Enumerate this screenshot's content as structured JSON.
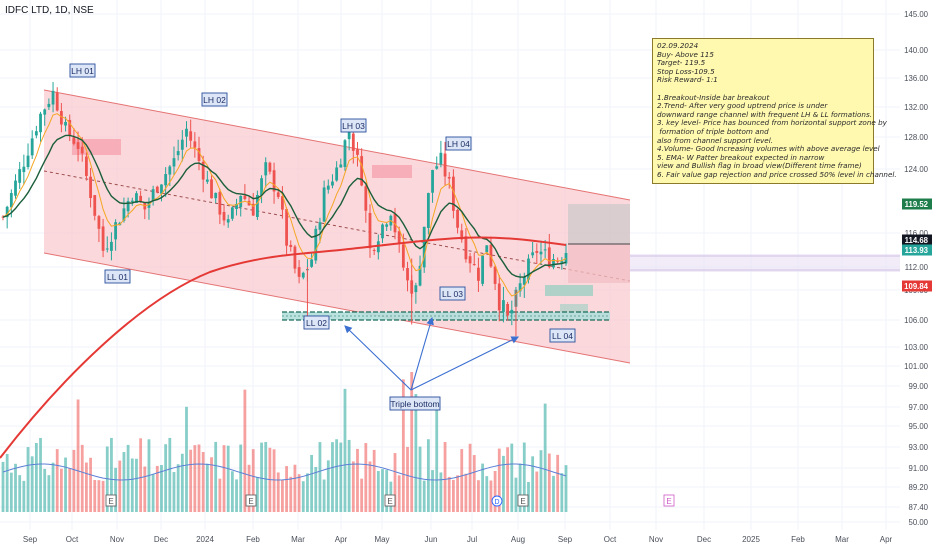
{
  "chart_data": {
    "type": "candlestick",
    "symbol_title": "IDFC LTD, 1D, NSE",
    "x_tick_labels": [
      "Sep",
      "Oct",
      "Nov",
      "Dec",
      "2024",
      "Feb",
      "Mar",
      "Apr",
      "May",
      "Jun",
      "Jul",
      "Aug",
      "Sep",
      "Oct",
      "Nov",
      "Dec",
      "2025",
      "Feb",
      "Mar",
      "Apr"
    ],
    "y_tick_labels": [
      "145.00",
      "140.00",
      "136.00",
      "132.00",
      "128.00",
      "124.00",
      "116.00",
      "112.00",
      "109.00",
      "106.00",
      "103.00",
      "101.00",
      "99.00",
      "97.00",
      "95.00",
      "93.00",
      "91.00",
      "89.20",
      "87.40",
      "50.00"
    ],
    "price_axis_badges": [
      {
        "value": "119.52",
        "color": "#1e7d4b"
      },
      {
        "value": "114.68",
        "color": "#131722"
      },
      {
        "value": "113.93",
        "color": "#26a69a"
      },
      {
        "value": "109.84",
        "color": "#e53935"
      }
    ],
    "swing_labels": [
      "LH 01",
      "LH 02",
      "LH 03",
      "LH 04",
      "LL 01",
      "LL 02",
      "LL 03",
      "LL 04"
    ],
    "pattern_label": "Triple bottom",
    "event_marker": "E",
    "dividend_marker": "D",
    "annotation_lines": [
      "02.09.2024",
      "Buy- Above 115",
      "Target- 119.5",
      "Stop Loss-109.5",
      "Risk Reward- 1:1",
      "",
      "1.Breakout-Inside bar breakout",
      "2.Trend- After very good uptrend price is under",
      "downward range channel with frequent LH & LL formations.",
      "3. key level- Price has bounced from horizontal support zone by",
      " formation of triple bottom and",
      "also from channel support level.",
      "4.Volume- Good Increasing volumes with above average level",
      "5. EMA- W Patter breakout expected in narrow",
      "view and Bullish flag in broad view(Different time frame)",
      "6. Fair value gap rejection and price crossed 50% level in channel."
    ],
    "colors": {
      "up": "#26a69a",
      "down": "#ef5350",
      "channel_fill": "#f8c9cf",
      "ema_200": "#e53935",
      "ema_50": "#1b5e3a",
      "ema_20": "#f5a623",
      "volume_ma": "#5b7fd6",
      "support_zone": "#26a69a",
      "annotation_bg": "#fff9b0"
    }
  }
}
